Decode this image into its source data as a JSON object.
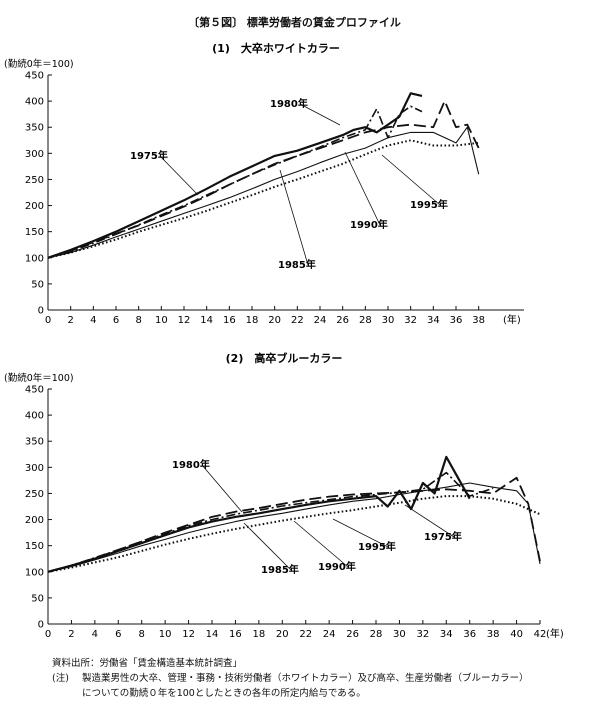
{
  "figure": {
    "title": "〔第５図〕 標準労働者の賃金プロファイル",
    "source_label": "資料出所：",
    "source_text": "労働省「賃金構造基本統計調査」",
    "note_label": "(注)",
    "note_line1": "製造業男性の大卒、管理・事務・技術労働者（ホワイトカラー）及び高卒、生産労働者（ブルーカラー）",
    "note_line2": "についての勤続０年を100としたときの各年の所定内給与である。"
  },
  "chart_data": [
    {
      "type": "line",
      "title": "(1)　大卒ホワイトカラー",
      "ylabel": "(勤続0年＝100)",
      "xunit": "(年)",
      "xlim": [
        0,
        42
      ],
      "ylim": [
        0,
        450
      ],
      "xticks": [
        0,
        2,
        4,
        6,
        8,
        10,
        12,
        14,
        16,
        18,
        20,
        22,
        24,
        26,
        28,
        30,
        32,
        34,
        36,
        38
      ],
      "yticks": [
        0,
        50,
        100,
        150,
        200,
        250,
        300,
        350,
        400,
        450
      ],
      "grid": false,
      "series": [
        {
          "name": "1975年",
          "style": "solid-thick",
          "x": [
            0,
            2,
            4,
            6,
            8,
            10,
            12,
            14,
            16,
            18,
            20,
            22,
            24,
            26,
            27,
            28,
            29,
            30,
            31,
            32,
            33
          ],
          "y": [
            100,
            115,
            132,
            150,
            170,
            190,
            210,
            232,
            255,
            275,
            295,
            305,
            320,
            335,
            345,
            350,
            340,
            355,
            370,
            415,
            410
          ]
        },
        {
          "name": "1980年",
          "style": "long-dash",
          "x": [
            0,
            2,
            4,
            6,
            8,
            10,
            12,
            14,
            16,
            18,
            20,
            22,
            24,
            26,
            28,
            30,
            32,
            34,
            35,
            36,
            37,
            38
          ],
          "y": [
            100,
            113,
            130,
            146,
            162,
            180,
            198,
            218,
            240,
            260,
            280,
            295,
            310,
            325,
            340,
            350,
            355,
            350,
            400,
            350,
            355,
            310
          ]
        },
        {
          "name": "1985年",
          "style": "dash-dot",
          "x": [
            0,
            2,
            4,
            6,
            8,
            10,
            12,
            14,
            16,
            18,
            20,
            22,
            24,
            26,
            28,
            29,
            30,
            31,
            32,
            33
          ],
          "y": [
            100,
            112,
            128,
            145,
            163,
            182,
            200,
            220,
            240,
            260,
            278,
            295,
            312,
            330,
            345,
            385,
            330,
            375,
            390,
            380
          ]
        },
        {
          "name": "1990年",
          "style": "thin-solid",
          "x": [
            0,
            2,
            4,
            6,
            8,
            10,
            12,
            14,
            16,
            18,
            20,
            22,
            24,
            26,
            28,
            30,
            32,
            34,
            36,
            37,
            38
          ],
          "y": [
            100,
            110,
            124,
            140,
            155,
            170,
            185,
            200,
            215,
            232,
            250,
            265,
            282,
            298,
            310,
            330,
            340,
            340,
            320,
            350,
            260
          ]
        },
        {
          "name": "1995年",
          "style": "dotted",
          "x": [
            0,
            2,
            4,
            6,
            8,
            10,
            12,
            14,
            16,
            18,
            20,
            22,
            24,
            26,
            28,
            30,
            32,
            34,
            36,
            38
          ],
          "y": [
            100,
            110,
            122,
            135,
            150,
            163,
            176,
            190,
            205,
            220,
            236,
            250,
            265,
            280,
            298,
            315,
            325,
            315,
            315,
            320
          ]
        }
      ],
      "annotations": [
        "1975年",
        "1980年",
        "1985年",
        "1990年",
        "1995年"
      ]
    },
    {
      "type": "line",
      "title": "(2)　高卒ブルーカラー",
      "ylabel": "(勤続0年＝100)",
      "xunit": "(年)",
      "xlim": [
        0,
        42
      ],
      "ylim": [
        0,
        450
      ],
      "xticks": [
        0,
        2,
        4,
        6,
        8,
        10,
        12,
        14,
        16,
        18,
        20,
        22,
        24,
        26,
        28,
        30,
        32,
        34,
        36,
        38,
        40,
        42
      ],
      "yticks": [
        0,
        50,
        100,
        150,
        200,
        250,
        300,
        350,
        400,
        450
      ],
      "grid": false,
      "series": [
        {
          "name": "1975年",
          "style": "solid-thick",
          "x": [
            0,
            2,
            4,
            6,
            8,
            10,
            12,
            14,
            16,
            18,
            20,
            22,
            24,
            26,
            28,
            29,
            30,
            31,
            32,
            33,
            34,
            35,
            36
          ],
          "y": [
            100,
            112,
            125,
            140,
            155,
            170,
            185,
            196,
            205,
            212,
            220,
            228,
            235,
            240,
            245,
            225,
            255,
            220,
            270,
            250,
            320,
            280,
            240
          ]
        },
        {
          "name": "1980年",
          "style": "long-dash",
          "x": [
            0,
            2,
            4,
            6,
            8,
            10,
            12,
            14,
            16,
            18,
            20,
            22,
            24,
            26,
            28,
            30,
            32,
            34,
            36,
            38,
            40,
            41,
            42
          ],
          "y": [
            100,
            112,
            126,
            142,
            158,
            175,
            190,
            205,
            215,
            222,
            230,
            238,
            244,
            248,
            250,
            252,
            255,
            258,
            255,
            250,
            280,
            230,
            120
          ]
        },
        {
          "name": "1985年",
          "style": "dash-dot",
          "x": [
            0,
            2,
            4,
            6,
            8,
            10,
            12,
            14,
            16,
            18,
            20,
            22,
            24,
            26,
            28,
            30,
            32,
            34,
            36,
            38
          ],
          "y": [
            100,
            112,
            127,
            142,
            158,
            173,
            188,
            200,
            210,
            218,
            226,
            232,
            238,
            244,
            248,
            252,
            258,
            290,
            245,
            260
          ]
        },
        {
          "name": "1990年",
          "style": "thin-solid",
          "x": [
            0,
            2,
            4,
            6,
            8,
            10,
            12,
            14,
            16,
            18,
            20,
            22,
            24,
            26,
            28,
            30,
            32,
            34,
            36,
            38,
            40,
            41,
            42
          ],
          "y": [
            100,
            110,
            123,
            136,
            150,
            162,
            175,
            186,
            196,
            205,
            212,
            220,
            228,
            235,
            240,
            248,
            255,
            262,
            270,
            262,
            255,
            230,
            115
          ]
        },
        {
          "name": "1995年",
          "style": "dotted",
          "x": [
            0,
            2,
            4,
            6,
            8,
            10,
            12,
            14,
            16,
            18,
            20,
            22,
            24,
            26,
            28,
            30,
            32,
            34,
            36,
            38,
            40,
            42
          ],
          "y": [
            100,
            108,
            118,
            128,
            140,
            152,
            163,
            173,
            182,
            190,
            198,
            205,
            212,
            218,
            225,
            232,
            240,
            245,
            245,
            240,
            230,
            210
          ]
        }
      ],
      "annotations": [
        "1975年",
        "1980年",
        "1985年",
        "1990年",
        "1995年"
      ]
    }
  ]
}
